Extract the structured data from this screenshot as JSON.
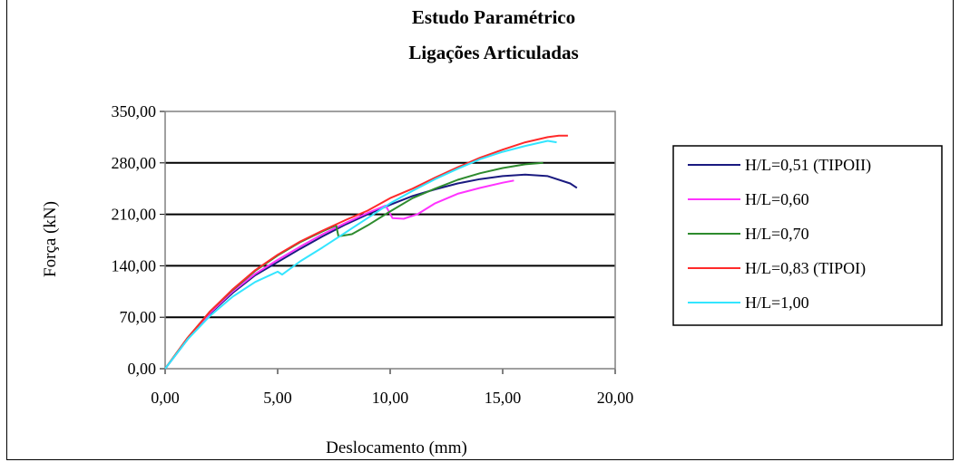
{
  "chart_data": {
    "type": "line",
    "title": "Estudo Paramétrico",
    "subtitle": "Ligações Articuladas",
    "xlabel": "Deslocamento (mm)",
    "ylabel": "Força (kN)",
    "xlim": [
      0,
      20
    ],
    "ylim": [
      0,
      350
    ],
    "xticks": [
      "0,00",
      "5,00",
      "10,00",
      "15,00",
      "20,00"
    ],
    "yticks": [
      "0,00",
      "70,00",
      "140,00",
      "210,00",
      "280,00",
      "350,00"
    ],
    "grid": "horizontal",
    "legend_position": "right",
    "series": [
      {
        "name": "H/L=0,51 (TIPOII)",
        "color": "#1a1a80",
        "points": [
          [
            0,
            0
          ],
          [
            1,
            40
          ],
          [
            2,
            75
          ],
          [
            3,
            103
          ],
          [
            4,
            127
          ],
          [
            5,
            145
          ],
          [
            6,
            163
          ],
          [
            7,
            180
          ],
          [
            8,
            196
          ],
          [
            9,
            210
          ],
          [
            10,
            223
          ],
          [
            11,
            235
          ],
          [
            12,
            244
          ],
          [
            13,
            252
          ],
          [
            14,
            258
          ],
          [
            15,
            262
          ],
          [
            16,
            264
          ],
          [
            17,
            262
          ],
          [
            18,
            252
          ],
          [
            18.3,
            246
          ]
        ]
      },
      {
        "name": "H/L=0,60",
        "color": "#ff33ff",
        "points": [
          [
            0,
            0
          ],
          [
            1,
            41
          ],
          [
            2,
            76
          ],
          [
            3,
            105
          ],
          [
            4,
            129
          ],
          [
            5,
            148
          ],
          [
            6,
            166
          ],
          [
            7,
            183
          ],
          [
            8,
            198
          ],
          [
            9,
            212
          ],
          [
            9.8,
            222
          ],
          [
            10.1,
            205
          ],
          [
            10.6,
            204
          ],
          [
            11.2,
            210
          ],
          [
            12,
            225
          ],
          [
            13,
            238
          ],
          [
            14,
            246
          ],
          [
            15,
            253
          ],
          [
            15.5,
            256
          ]
        ]
      },
      {
        "name": "H/L=0,70",
        "color": "#2e8b2e",
        "points": [
          [
            0,
            0
          ],
          [
            1,
            42
          ],
          [
            2,
            78
          ],
          [
            3,
            107
          ],
          [
            4,
            133
          ],
          [
            5,
            154
          ],
          [
            6,
            172
          ],
          [
            7,
            187
          ],
          [
            7.6,
            195
          ],
          [
            7.7,
            180
          ],
          [
            8.3,
            183
          ],
          [
            9,
            195
          ],
          [
            10,
            214
          ],
          [
            11,
            232
          ],
          [
            12,
            245
          ],
          [
            13,
            257
          ],
          [
            14,
            266
          ],
          [
            15,
            273
          ],
          [
            16,
            278
          ],
          [
            16.8,
            280
          ]
        ]
      },
      {
        "name": "H/L=0,83 (TIPOI)",
        "color": "#ff2a2a",
        "points": [
          [
            0,
            0
          ],
          [
            1,
            42
          ],
          [
            2,
            78
          ],
          [
            3,
            108
          ],
          [
            4,
            134
          ],
          [
            5,
            155
          ],
          [
            6,
            173
          ],
          [
            7,
            188
          ],
          [
            8,
            202
          ],
          [
            9,
            215
          ],
          [
            10,
            232
          ],
          [
            11,
            245
          ],
          [
            12,
            260
          ],
          [
            13,
            274
          ],
          [
            14,
            287
          ],
          [
            15,
            298
          ],
          [
            16,
            308
          ],
          [
            17,
            315
          ],
          [
            17.5,
            317
          ],
          [
            17.9,
            317
          ]
        ]
      },
      {
        "name": "H/L=1,00",
        "color": "#33e5ff",
        "points": [
          [
            0,
            0
          ],
          [
            1,
            40
          ],
          [
            2,
            72
          ],
          [
            3,
            98
          ],
          [
            4,
            118
          ],
          [
            5,
            132
          ],
          [
            5.2,
            128
          ],
          [
            6,
            146
          ],
          [
            7,
            165
          ],
          [
            8,
            185
          ],
          [
            9,
            205
          ],
          [
            10,
            225
          ],
          [
            11,
            242
          ],
          [
            12,
            258
          ],
          [
            13,
            272
          ],
          [
            14,
            285
          ],
          [
            15,
            295
          ],
          [
            16,
            303
          ],
          [
            17,
            310
          ],
          [
            17.4,
            308
          ]
        ]
      }
    ]
  }
}
